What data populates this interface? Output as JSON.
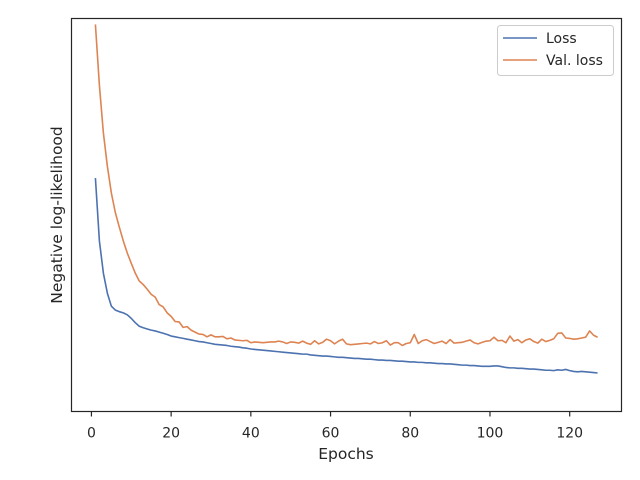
{
  "chart_data": {
    "type": "line",
    "xlabel": "Epochs",
    "ylabel": "Negative log-likelihood",
    "title": "",
    "xlim": [
      -5,
      133
    ],
    "ylim": [
      0,
      1
    ],
    "y_ticks_shown": false,
    "x_ticks": [
      0,
      20,
      40,
      60,
      80,
      100,
      120
    ],
    "grid": false,
    "legend_placement": "top-right",
    "series": [
      {
        "name": "Loss",
        "color": "#4c72b0",
        "x": [
          1,
          2,
          3,
          4,
          5,
          6,
          7,
          8,
          9,
          10,
          11,
          12,
          13,
          14,
          15,
          16,
          17,
          18,
          19,
          20,
          21,
          22,
          23,
          24,
          25,
          26,
          27,
          28,
          29,
          30,
          31,
          32,
          33,
          34,
          35,
          36,
          37,
          38,
          39,
          40,
          41,
          42,
          43,
          44,
          45,
          46,
          47,
          48,
          49,
          50,
          51,
          52,
          53,
          54,
          55,
          56,
          57,
          58,
          59,
          60,
          61,
          62,
          63,
          64,
          65,
          66,
          67,
          68,
          69,
          70,
          71,
          72,
          73,
          74,
          75,
          76,
          77,
          78,
          79,
          80,
          81,
          82,
          83,
          84,
          85,
          86,
          87,
          88,
          89,
          90,
          91,
          92,
          93,
          94,
          95,
          96,
          97,
          98,
          99,
          100,
          101,
          102,
          103,
          104,
          105,
          106,
          107,
          108,
          109,
          110,
          111,
          112,
          113,
          114,
          115,
          116,
          117,
          118,
          119,
          120,
          121,
          122,
          123,
          124,
          125,
          126,
          127
        ],
        "y": [
          0.594,
          0.434,
          0.352,
          0.301,
          0.268,
          0.258,
          0.254,
          0.251,
          0.246,
          0.237,
          0.226,
          0.217,
          0.213,
          0.21,
          0.207,
          0.205,
          0.202,
          0.199,
          0.196,
          0.192,
          0.19,
          0.188,
          0.186,
          0.184,
          0.182,
          0.18,
          0.178,
          0.177,
          0.175,
          0.173,
          0.171,
          0.17,
          0.169,
          0.168,
          0.166,
          0.165,
          0.164,
          0.162,
          0.161,
          0.159,
          0.158,
          0.157,
          0.156,
          0.155,
          0.154,
          0.153,
          0.152,
          0.151,
          0.15,
          0.149,
          0.148,
          0.147,
          0.146,
          0.146,
          0.144,
          0.143,
          0.142,
          0.141,
          0.141,
          0.14,
          0.139,
          0.138,
          0.138,
          0.137,
          0.136,
          0.135,
          0.135,
          0.134,
          0.133,
          0.133,
          0.132,
          0.131,
          0.131,
          0.13,
          0.13,
          0.129,
          0.128,
          0.128,
          0.127,
          0.126,
          0.126,
          0.125,
          0.125,
          0.124,
          0.124,
          0.123,
          0.122,
          0.122,
          0.121,
          0.121,
          0.12,
          0.119,
          0.118,
          0.118,
          0.117,
          0.117,
          0.116,
          0.115,
          0.115,
          0.115,
          0.116,
          0.116,
          0.114,
          0.112,
          0.111,
          0.111,
          0.11,
          0.11,
          0.109,
          0.108,
          0.108,
          0.107,
          0.106,
          0.105,
          0.105,
          0.104,
          0.106,
          0.105,
          0.107,
          0.104,
          0.102,
          0.101,
          0.102,
          0.101,
          0.1,
          0.099,
          0.098
        ]
      },
      {
        "name": "Val. loss",
        "color": "#dd8452",
        "x": [
          1,
          2,
          3,
          4,
          5,
          6,
          7,
          8,
          9,
          10,
          11,
          12,
          13,
          14,
          15,
          16,
          17,
          18,
          19,
          20,
          21,
          22,
          23,
          24,
          25,
          26,
          27,
          28,
          29,
          30,
          31,
          32,
          33,
          34,
          35,
          36,
          37,
          38,
          39,
          40,
          41,
          42,
          43,
          44,
          45,
          46,
          47,
          48,
          49,
          50,
          51,
          52,
          53,
          54,
          55,
          56,
          57,
          58,
          59,
          60,
          61,
          62,
          63,
          64,
          65,
          66,
          67,
          68,
          69,
          70,
          71,
          72,
          73,
          74,
          75,
          76,
          77,
          78,
          79,
          80,
          81,
          82,
          83,
          84,
          85,
          86,
          87,
          88,
          89,
          90,
          91,
          92,
          93,
          94,
          95,
          96,
          97,
          98,
          99,
          100,
          101,
          102,
          103,
          104,
          105,
          106,
          107,
          108,
          109,
          110,
          111,
          112,
          113,
          114,
          115,
          116,
          117,
          118,
          119,
          120,
          121,
          122,
          123,
          124,
          125,
          126,
          127
        ],
        "y": [
          0.985,
          0.83,
          0.709,
          0.624,
          0.556,
          0.506,
          0.469,
          0.434,
          0.403,
          0.377,
          0.352,
          0.332,
          0.323,
          0.311,
          0.298,
          0.291,
          0.272,
          0.266,
          0.251,
          0.242,
          0.229,
          0.228,
          0.214,
          0.216,
          0.207,
          0.202,
          0.197,
          0.196,
          0.19,
          0.195,
          0.19,
          0.19,
          0.191,
          0.185,
          0.187,
          0.182,
          0.181,
          0.18,
          0.181,
          0.175,
          0.177,
          0.176,
          0.175,
          0.176,
          0.177,
          0.177,
          0.179,
          0.177,
          0.173,
          0.177,
          0.176,
          0.174,
          0.179,
          0.174,
          0.171,
          0.18,
          0.172,
          0.176,
          0.184,
          0.18,
          0.172,
          0.179,
          0.184,
          0.172,
          0.17,
          0.171,
          0.172,
          0.173,
          0.174,
          0.172,
          0.178,
          0.173,
          0.175,
          0.18,
          0.169,
          0.175,
          0.175,
          0.168,
          0.173,
          0.175,
          0.196,
          0.173,
          0.18,
          0.183,
          0.178,
          0.173,
          0.176,
          0.179,
          0.173,
          0.183,
          0.174,
          0.175,
          0.176,
          0.179,
          0.182,
          0.175,
          0.172,
          0.176,
          0.179,
          0.18,
          0.189,
          0.18,
          0.181,
          0.175,
          0.192,
          0.179,
          0.183,
          0.175,
          0.182,
          0.185,
          0.178,
          0.174,
          0.184,
          0.178,
          0.181,
          0.185,
          0.199,
          0.2,
          0.187,
          0.186,
          0.184,
          0.185,
          0.187,
          0.189,
          0.205,
          0.194,
          0.189
        ]
      }
    ]
  }
}
